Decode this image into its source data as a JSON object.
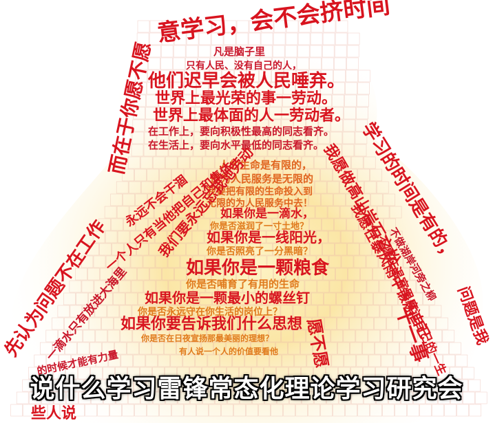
{
  "subtitle": "说什么学习雷锋常态化理论学习研究会",
  "colors": {
    "outline": "#c9162a",
    "outer": "#d8141f",
    "middle": "#ec5a1c",
    "inner": "#f2a41c",
    "core": "#f6cc3a"
  },
  "artwork": {
    "head_top": "意学习，会不会挤时间",
    "head_line1": "凡是脑子里",
    "head_line2": "只有人民、没有自己的人，",
    "head_line3": "他们迟早会被人民唾弃。",
    "head_line4": "世界上最光荣的事一劳动。",
    "head_line5": "世界上最体面的人一劳动者。",
    "head_line6": "在工作上，要向积极性最高的同志看齐。",
    "head_line7": "在生活上，要向水平最低的同志看齐。",
    "left_neck": "而在于你愿不愿",
    "right_neck": "学习的时间是有的，",
    "center1": "人的生命是有限的，",
    "center2": "但为人民服务是无限的",
    "center3": "我要把有限的生命投入到",
    "center4": "无限的为人民服务中去！",
    "center5": "如果你是一滴水，",
    "center6": "你是否滋润了一寸土地？",
    "center7": "如果你是一线阳光，",
    "center8": "你是否照亮了一分黑暗？",
    "center9": "如果你是一颗粮食",
    "center10": "你是否哺育了有用的生命",
    "center11": "如果你是一颗最小的螺丝钉",
    "center12": "你是否永远守在你生活的岗位上？",
    "center13": "如果你要告诉我们什么思想",
    "center14": "你是否在日夜宣扬那最美丽的理想？",
    "left_wing1": "先认为问题不在工作",
    "left_wing2": "一滴水只有放进大海里",
    "left_wing3": "永远不会干涸",
    "left_wing4": "一个人只有当他把自己和集体",
    "left_wing5": "的时候才能有力量",
    "left_wing6": "我们要永远忘我地劳动",
    "right_wing1": "我愿做高山岩石之松",
    "right_wing2": "不做湖岸河旁之柳",
    "right_wing3": "我愿在暴风雨中锻炼自己",
    "right_wing4": "不愿在温室里度过自己的一生",
    "right_wing5": "问题是我",
    "bottom1": "愿不愿",
    "bottom2": "十一事",
    "bottom3": "有人说一个人的价值要看他",
    "bottom4": "些人说"
  }
}
